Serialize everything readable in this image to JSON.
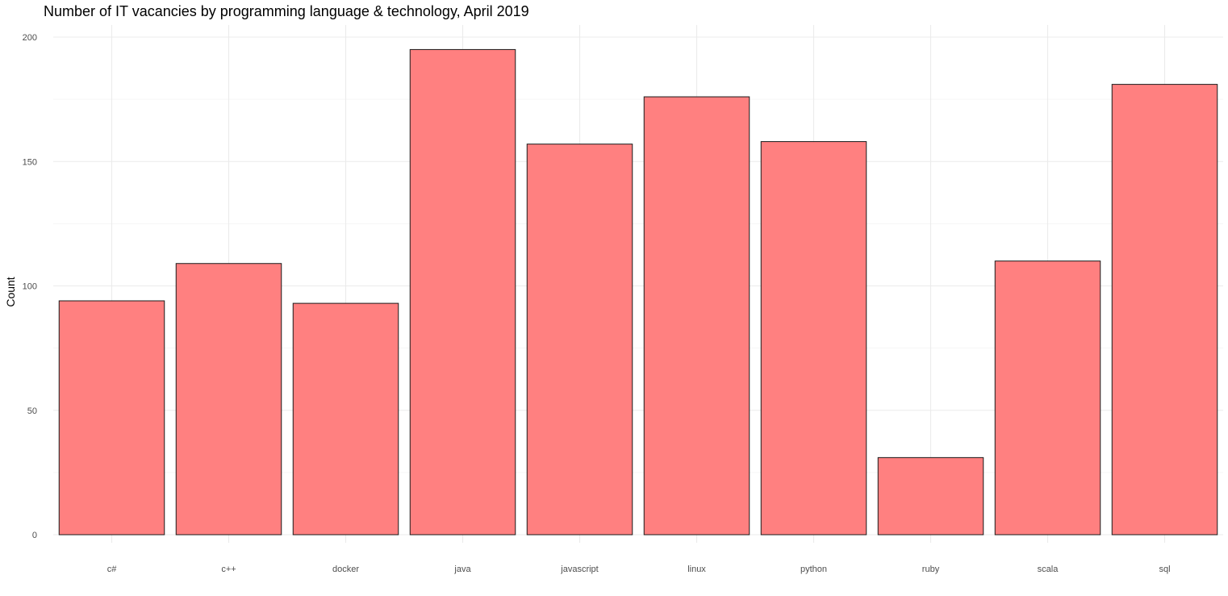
{
  "chart_data": {
    "type": "bar",
    "title": "Number of IT vacancies by programming language & technology, April 2019",
    "xlabel": "",
    "ylabel": "Count",
    "categories": [
      "c#",
      "c++",
      "docker",
      "java",
      "javascript",
      "linux",
      "python",
      "ruby",
      "scala",
      "sql"
    ],
    "values": [
      94,
      109,
      93,
      195,
      157,
      176,
      158,
      31,
      110,
      181
    ],
    "ylim": [
      0,
      200
    ],
    "yticks": [
      0,
      50,
      100,
      150,
      200
    ],
    "grid": true,
    "legend": "none",
    "bar_color": "#ff8080",
    "bar_border_color": "#1a1a1a"
  }
}
